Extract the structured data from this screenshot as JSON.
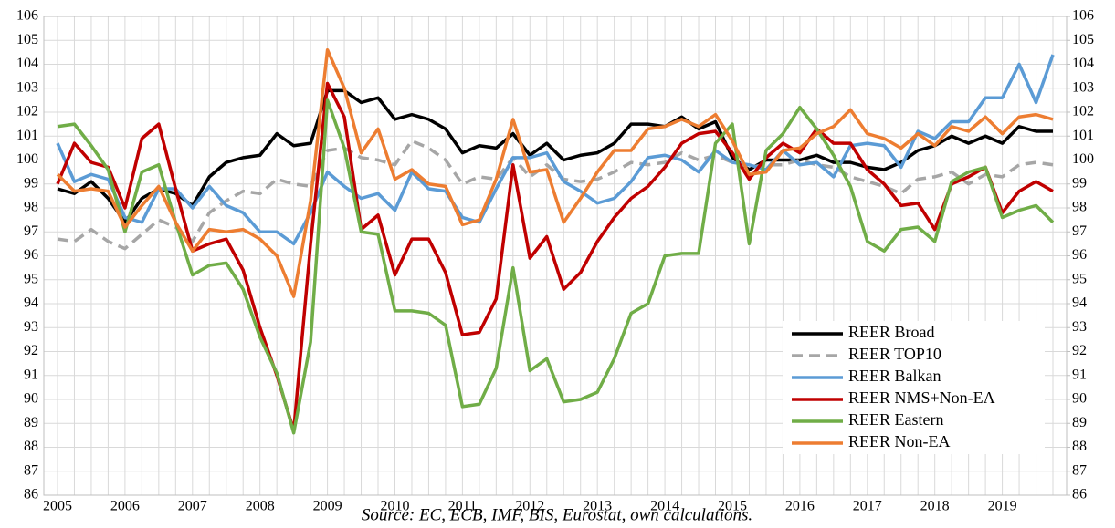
{
  "chart_data": {
    "type": "line",
    "source": "Source: EC, ECB, IMF, BIS, Eurostat, own calculations.",
    "categories": [
      "2005",
      null,
      null,
      null,
      "2006",
      null,
      null,
      null,
      "2007",
      null,
      null,
      null,
      "2008",
      null,
      null,
      null,
      "2009",
      null,
      null,
      null,
      "2010",
      null,
      null,
      null,
      "2011",
      null,
      null,
      null,
      "2012",
      null,
      null,
      null,
      "2013",
      null,
      null,
      null,
      "2014",
      null,
      null,
      null,
      "2015",
      null,
      null,
      null,
      "2016",
      null,
      null,
      null,
      "2017",
      null,
      null,
      null,
      "2018",
      null,
      null,
      null,
      "2019",
      null,
      null,
      null
    ],
    "ylim": [
      86,
      106
    ],
    "yticks": [
      86,
      87,
      88,
      89,
      90,
      91,
      92,
      93,
      94,
      95,
      96,
      97,
      98,
      99,
      100,
      101,
      102,
      103,
      104,
      105,
      106
    ],
    "y2lim": [
      86,
      106
    ],
    "y2ticks": [
      86,
      87,
      88,
      89,
      90,
      91,
      92,
      93,
      94,
      95,
      96,
      97,
      98,
      99,
      100,
      101,
      102,
      103,
      104,
      105,
      106
    ],
    "grid": true,
    "legend": "lower right",
    "series": [
      {
        "name": "REER Broad",
        "color": "#000000",
        "style": "solid",
        "values": [
          98.8,
          98.6,
          99.1,
          98.4,
          97.4,
          98.4,
          98.8,
          98.6,
          98.1,
          99.3,
          99.9,
          100.1,
          100.2,
          101.1,
          100.6,
          100.7,
          102.9,
          102.9,
          102.4,
          102.6,
          101.7,
          101.9,
          101.7,
          101.3,
          100.3,
          100.6,
          100.5,
          101.1,
          100.2,
          100.7,
          100.0,
          100.2,
          100.3,
          100.7,
          101.5,
          101.5,
          101.4,
          101.8,
          101.3,
          101.6,
          100.1,
          99.6,
          100.0,
          100.0,
          100.0,
          100.2,
          99.9,
          99.9,
          99.7,
          99.6,
          99.9,
          100.4,
          100.6,
          101.0,
          100.7,
          101.0,
          100.7,
          101.4,
          101.2,
          101.2
        ]
      },
      {
        "name": "REER TOP10",
        "color": "#a6a6a6",
        "style": "dashed",
        "values": [
          96.7,
          96.6,
          97.1,
          96.6,
          96.3,
          96.9,
          97.5,
          97.2,
          96.6,
          97.8,
          98.3,
          98.7,
          98.6,
          99.2,
          99.0,
          98.9,
          100.4,
          100.5,
          100.1,
          100.0,
          99.8,
          100.8,
          100.5,
          100.0,
          99.0,
          99.3,
          99.2,
          100.1,
          99.3,
          99.8,
          99.2,
          99.1,
          99.2,
          99.5,
          99.9,
          99.8,
          99.9,
          100.3,
          100.0,
          100.2,
          99.9,
          99.7,
          99.8,
          99.8,
          100.0,
          99.8,
          99.7,
          99.3,
          99.1,
          98.9,
          98.6,
          99.2,
          99.3,
          99.5,
          99.0,
          99.4,
          99.3,
          99.8,
          99.9,
          99.8
        ]
      },
      {
        "name": "REER Balkan",
        "color": "#5b9bd5",
        "style": "solid",
        "values": [
          100.7,
          99.1,
          99.4,
          99.2,
          97.6,
          97.4,
          98.8,
          98.8,
          98.0,
          98.9,
          98.1,
          97.8,
          97.0,
          97.0,
          96.5,
          97.8,
          99.5,
          98.9,
          98.4,
          98.6,
          97.9,
          99.5,
          98.8,
          98.7,
          97.6,
          97.4,
          98.8,
          100.1,
          100.1,
          100.3,
          99.1,
          98.7,
          98.2,
          98.4,
          99.1,
          100.1,
          100.2,
          100.0,
          99.5,
          100.4,
          99.9,
          99.8,
          99.6,
          100.4,
          99.8,
          99.9,
          99.3,
          100.6,
          100.7,
          100.6,
          99.7,
          101.2,
          100.9,
          101.6,
          101.6,
          102.6,
          102.6,
          104.0,
          102.4,
          104.4
        ]
      },
      {
        "name": "REER NMS+Non-EA",
        "color": "#c00000",
        "style": "solid",
        "values": [
          99.0,
          100.7,
          99.9,
          99.7,
          98.0,
          100.9,
          101.5,
          98.8,
          96.2,
          96.5,
          96.7,
          95.4,
          93.0,
          91.0,
          88.7,
          96.5,
          103.2,
          101.8,
          97.1,
          97.7,
          95.2,
          96.7,
          96.7,
          95.3,
          92.7,
          92.8,
          94.2,
          99.8,
          95.9,
          96.8,
          94.6,
          95.3,
          96.6,
          97.6,
          98.4,
          98.9,
          99.7,
          100.7,
          101.1,
          101.2,
          100.3,
          99.2,
          100.1,
          100.7,
          100.3,
          101.3,
          100.7,
          100.7,
          99.6,
          99.0,
          98.1,
          98.2,
          97.1,
          99.0,
          99.3,
          99.7,
          97.8,
          98.7,
          99.1,
          98.7
        ]
      },
      {
        "name": "REER Eastern",
        "color": "#70ad47",
        "style": "solid",
        "values": [
          101.4,
          101.5,
          100.6,
          99.6,
          97.0,
          99.5,
          99.8,
          97.4,
          95.2,
          95.6,
          95.7,
          94.6,
          92.6,
          91.1,
          88.6,
          92.4,
          102.5,
          100.5,
          97.0,
          96.9,
          93.7,
          93.7,
          93.6,
          93.1,
          89.7,
          89.8,
          91.3,
          95.5,
          91.2,
          91.7,
          89.9,
          90.0,
          90.3,
          91.7,
          93.6,
          94.0,
          96.0,
          96.1,
          96.1,
          100.7,
          101.5,
          96.5,
          100.4,
          101.1,
          102.2,
          101.3,
          100.2,
          98.9,
          96.6,
          96.2,
          97.1,
          97.2,
          96.6,
          99.1,
          99.5,
          99.7,
          97.6,
          97.9,
          98.1,
          97.4
        ]
      },
      {
        "name": "REER Non-EA",
        "color": "#ed7d31",
        "style": "solid",
        "values": [
          99.4,
          98.7,
          98.8,
          98.7,
          97.2,
          98.1,
          98.9,
          97.4,
          96.2,
          97.1,
          97.0,
          97.1,
          96.7,
          96.0,
          94.3,
          98.3,
          104.6,
          103.0,
          100.3,
          101.3,
          99.2,
          99.6,
          99.0,
          98.9,
          97.3,
          97.5,
          99.2,
          101.7,
          99.5,
          99.6,
          97.4,
          98.4,
          99.5,
          100.4,
          100.4,
          101.3,
          101.4,
          101.7,
          101.4,
          101.9,
          100.8,
          99.4,
          99.5,
          100.4,
          100.5,
          101.1,
          101.4,
          102.1,
          101.1,
          100.9,
          100.5,
          101.1,
          100.6,
          101.4,
          101.2,
          101.8,
          101.1,
          101.8,
          101.9,
          101.7
        ]
      }
    ]
  }
}
